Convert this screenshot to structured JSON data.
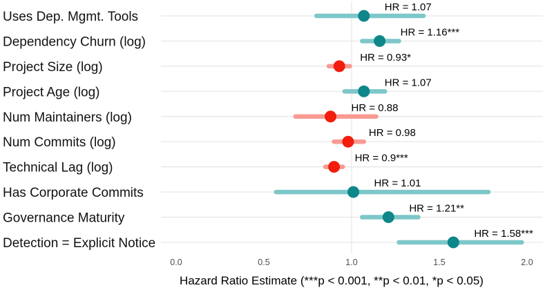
{
  "chart_data": {
    "type": "scatter",
    "variant": "forest_plot_with_error_bars",
    "title": "",
    "xlabel": "Hazard Ratio Estimate (***p < 0.001, **p < 0.01, *p < 0.05)",
    "ylabel": "",
    "xlim": [
      -0.09,
      2.1
    ],
    "x_ticks": [
      "0.0",
      "0.5",
      "1.0",
      "1.5",
      "2.0"
    ],
    "reference_line_x": 1.0,
    "grid": {
      "horizontal_row_lines": true,
      "vertical_line_at_1": true,
      "color": "#e5e5e5"
    },
    "legend": "none",
    "rows": [
      {
        "label": "Uses Dep. Mgmt. Tools",
        "hr": 1.07,
        "ci_low": 0.8,
        "ci_high": 1.41,
        "annotation": "HR = 1.07",
        "group": "increase"
      },
      {
        "label": "Dependency Churn (log)",
        "hr": 1.16,
        "ci_low": 1.06,
        "ci_high": 1.27,
        "annotation": "HR = 1.16***",
        "group": "increase"
      },
      {
        "label": "Project Size (log)",
        "hr": 0.93,
        "ci_low": 0.87,
        "ci_high": 0.99,
        "annotation": "HR = 0.93*",
        "group": "decrease"
      },
      {
        "label": "Project Age (log)",
        "hr": 1.07,
        "ci_low": 0.96,
        "ci_high": 1.19,
        "annotation": "HR = 1.07",
        "group": "increase"
      },
      {
        "label": "Num Maintainers (log)",
        "hr": 0.88,
        "ci_low": 0.68,
        "ci_high": 1.14,
        "annotation": "HR = 0.88",
        "group": "decrease"
      },
      {
        "label": "Num Commits (log)",
        "hr": 0.98,
        "ci_low": 0.9,
        "ci_high": 1.07,
        "annotation": "HR = 0.98",
        "group": "decrease"
      },
      {
        "label": "Technical Lag (log)",
        "hr": 0.9,
        "ci_low": 0.85,
        "ci_high": 0.95,
        "annotation": "HR = 0.9***",
        "group": "decrease"
      },
      {
        "label": "Has Corporate Commits",
        "hr": 1.01,
        "ci_low": 0.57,
        "ci_high": 1.78,
        "annotation": "HR = 1.01",
        "group": "increase"
      },
      {
        "label": "Governance Maturity",
        "hr": 1.21,
        "ci_low": 1.06,
        "ci_high": 1.38,
        "annotation": "HR = 1.21**",
        "group": "increase"
      },
      {
        "label": "Detection = Explicit Notice",
        "hr": 1.58,
        "ci_low": 1.27,
        "ci_high": 1.97,
        "annotation": "HR = 1.58***",
        "group": "increase"
      }
    ],
    "colors": {
      "increase_point": "#0e868a",
      "increase_ci": "#7ec7c9",
      "decrease_point": "#f21d0d",
      "decrease_ci": "#f89a92",
      "gridline": "#e5e5e5"
    }
  }
}
